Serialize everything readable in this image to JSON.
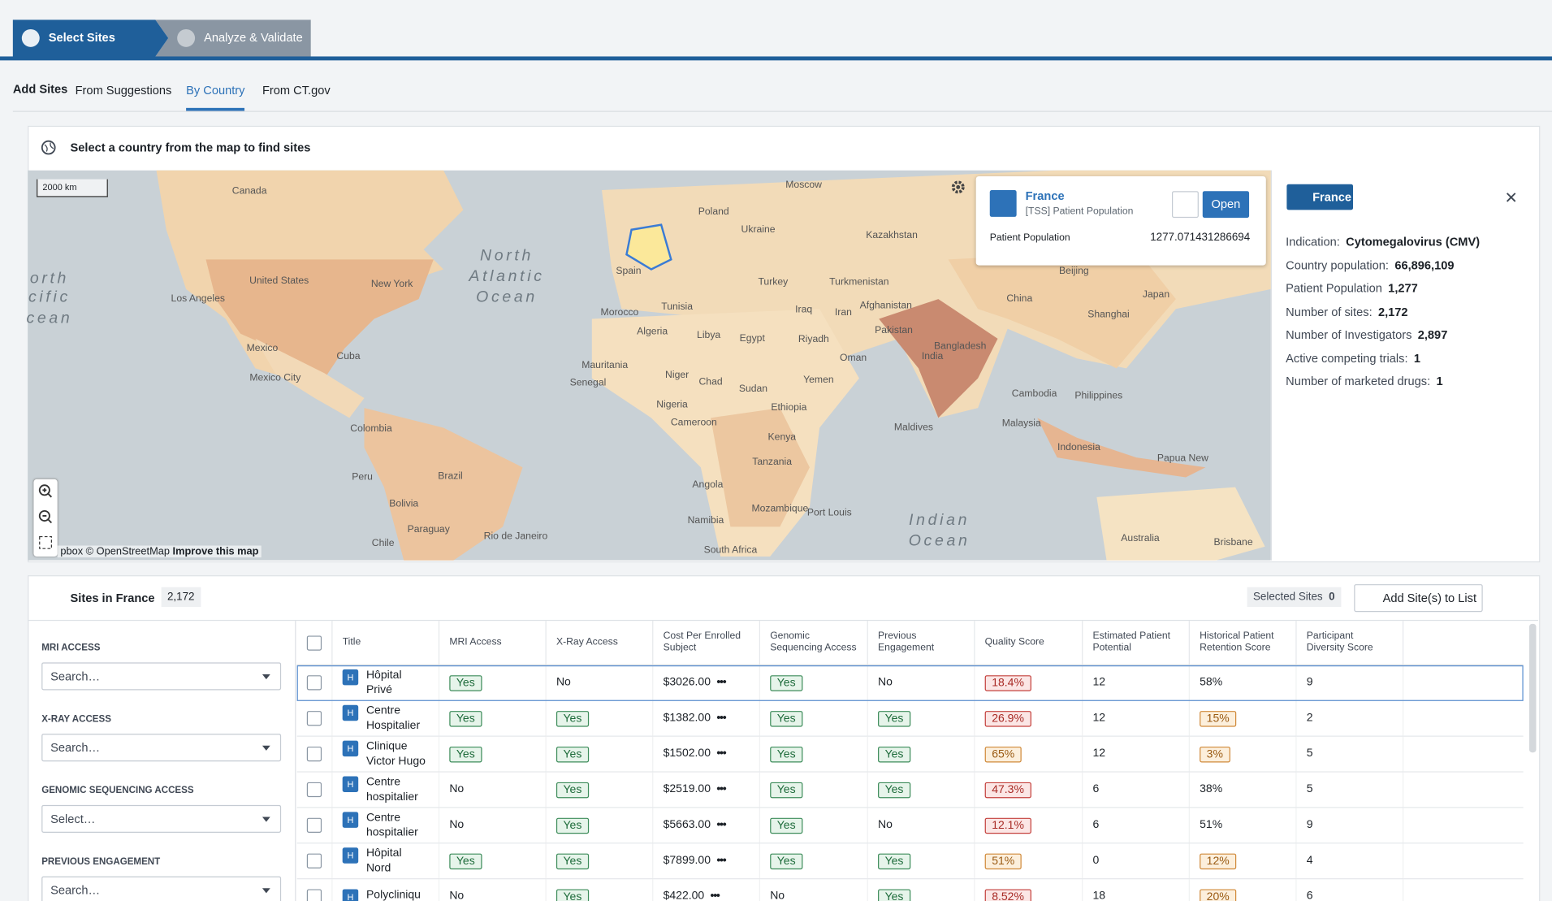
{
  "steps": [
    "Select Sites",
    "Analyze & Validate"
  ],
  "tabs": {
    "label": "Add Sites",
    "items": [
      "From Suggestions",
      "By Country",
      "From CT.gov"
    ]
  },
  "map_panel": {
    "header": "Select a country from the map to find sites",
    "scale": "2000 km",
    "attribution": "pbox © OpenStreetMap",
    "improve": "Improve this map",
    "labels": [
      "Canada",
      "United States",
      "New York",
      "Los Angeles",
      "Mexico",
      "Cuba",
      "Mexico City",
      "Colombia",
      "Peru",
      "Bolivia",
      "Brazil",
      "Chile",
      "Paraguay",
      "Rio de Janeiro",
      "North",
      "Atlantic",
      "Ocean",
      "orth",
      "cific",
      "cean",
      "Moscow",
      "Poland",
      "Ukraine",
      "Spain",
      "Turkey",
      "Morocco",
      "Tunisia",
      "Algeria",
      "Libya",
      "Egypt",
      "Iraq",
      "Iran",
      "Riyadh",
      "Oman",
      "Mauritania",
      "Senegal",
      "Niger",
      "Chad",
      "Sudan",
      "Yemen",
      "Nigeria",
      "Ethiopia",
      "Cameroon",
      "Kenya",
      "Tanzania",
      "Angola",
      "Namibia",
      "South Africa",
      "Mozambique",
      "Port Louis",
      "Kazakhstan",
      "Turkmenistan",
      "Afghanistan",
      "Pakistan",
      "India",
      "Bangladesh",
      "Beijing",
      "China",
      "Japan",
      "Shanghai",
      "Cambodia",
      "Philippines",
      "Malaysia",
      "Indonesia",
      "Papua New",
      "Maldives",
      "Indian",
      "Ocean",
      "Australia",
      "Brisbane"
    ]
  },
  "popup": {
    "title": "France",
    "subtitle": "[TSS] Patient Population",
    "button": "Open",
    "field": "Patient Population",
    "value": "1277.071431286694"
  },
  "details": {
    "badge": "France",
    "rows": [
      {
        "label": "Indication:",
        "value": "Cytomegalovirus (CMV)"
      },
      {
        "label": "Country population:",
        "value": "66,896,109"
      },
      {
        "label": "Patient Population",
        "value": "1,277"
      },
      {
        "label": "Number of sites:",
        "value": "2,172"
      },
      {
        "label": "Number of Investigators",
        "value": "2,897"
      },
      {
        "label": "Active competing trials:",
        "value": 1
      },
      {
        "label": "Number of marketed drugs:",
        "value": 1
      }
    ]
  },
  "sites": {
    "title": "Sites in France",
    "count": "2,172",
    "selected_label": "Selected Sites",
    "selected_count": 0,
    "add_button": "Add Site(s) to List"
  },
  "filters": [
    {
      "label": "MRI ACCESS",
      "placeholder": "Search…"
    },
    {
      "label": "X-RAY ACCESS",
      "placeholder": "Search…"
    },
    {
      "label": "GENOMIC SEQUENCING ACCESS",
      "placeholder": "Select…"
    },
    {
      "label": "PREVIOUS ENGAGEMENT",
      "placeholder": "Search…"
    }
  ],
  "table": {
    "columns": [
      "Title",
      "MRI Access",
      "X-Ray Access",
      "Cost Per Enrolled Subject",
      "Genomic Sequencing Access",
      "Previous Engagement",
      "Quality Score",
      "Estimated Patient Potential",
      "Historical Patient Retention Score",
      "Participant Diversity Score"
    ],
    "rows": [
      [
        "Hôpital Privé",
        "Yes",
        "No",
        "$3026.00",
        "Yes",
        "No",
        "18.4%",
        12,
        "58%",
        9
      ],
      [
        "Centre Hospitalier",
        "Yes",
        "Yes",
        "$1382.00",
        "Yes",
        "Yes",
        "26.9%",
        12,
        "15%",
        2
      ],
      [
        "Clinique Victor Hugo",
        "Yes",
        "Yes",
        "$1502.00",
        "Yes",
        "Yes",
        "65%",
        12,
        "3%",
        5
      ],
      [
        "Centre hospitalier",
        "No",
        "Yes",
        "$2519.00",
        "Yes",
        "Yes",
        "47.3%",
        6,
        "38%",
        5
      ],
      [
        "Centre hospitalier",
        "No",
        "Yes",
        "$5663.00",
        "Yes",
        "No",
        "12.1%",
        6,
        "51%",
        9
      ],
      [
        "Hôpital Nord",
        "Yes",
        "Yes",
        "$7899.00",
        "Yes",
        "Yes",
        "51%",
        0,
        "12%",
        4
      ],
      [
        "Polycliniqu",
        "No",
        "Yes",
        "$422.00",
        "No",
        "Yes",
        "8.52%",
        18,
        "20%",
        6
      ]
    ]
  }
}
